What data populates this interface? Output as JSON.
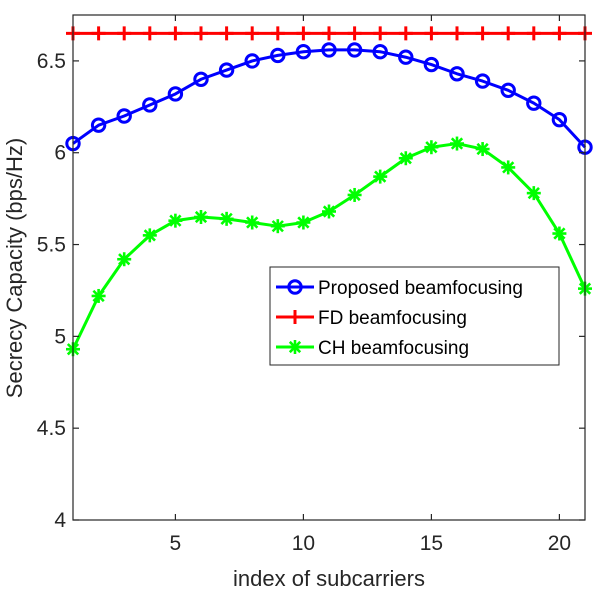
{
  "chart_data": {
    "type": "line",
    "title": "",
    "xlabel": "index of subcarriers",
    "ylabel": "Secrecy Capacity (bps/Hz)",
    "xlim": [
      1,
      21
    ],
    "ylim": [
      4,
      6.75
    ],
    "x_ticks": [
      5,
      10,
      15,
      20
    ],
    "y_ticks": [
      4,
      4.5,
      5,
      5.5,
      6,
      6.5
    ],
    "x_tick_labels": [
      "5",
      "10",
      "15",
      "20"
    ],
    "y_tick_labels": [
      "4",
      "4.5",
      "5",
      "5.5",
      "6",
      "6.5"
    ],
    "grid": false,
    "legend_position": "center-right",
    "x": [
      1,
      2,
      3,
      4,
      5,
      6,
      7,
      8,
      9,
      10,
      11,
      12,
      13,
      14,
      15,
      16,
      17,
      18,
      19,
      20,
      21
    ],
    "series": [
      {
        "name": "Proposed beamfocusing",
        "color": "#0000ff",
        "marker": "circle",
        "values": [
          6.05,
          6.15,
          6.2,
          6.26,
          6.32,
          6.4,
          6.45,
          6.5,
          6.53,
          6.55,
          6.56,
          6.56,
          6.55,
          6.52,
          6.48,
          6.43,
          6.39,
          6.34,
          6.27,
          6.18,
          6.03
        ]
      },
      {
        "name": "FD beamfocusing",
        "color": "#ff0000",
        "marker": "plus",
        "values": [
          6.65,
          6.65,
          6.65,
          6.65,
          6.65,
          6.65,
          6.65,
          6.65,
          6.65,
          6.65,
          6.65,
          6.65,
          6.65,
          6.65,
          6.65,
          6.65,
          6.65,
          6.65,
          6.65,
          6.65,
          6.65
        ]
      },
      {
        "name": "CH beamfocusing",
        "color": "#00ff00",
        "marker": "asterisk",
        "values": [
          4.93,
          5.22,
          5.42,
          5.55,
          5.63,
          5.65,
          5.64,
          5.62,
          5.6,
          5.62,
          5.68,
          5.77,
          5.87,
          5.97,
          6.03,
          6.05,
          6.02,
          5.92,
          5.78,
          5.56,
          5.26
        ]
      }
    ]
  }
}
